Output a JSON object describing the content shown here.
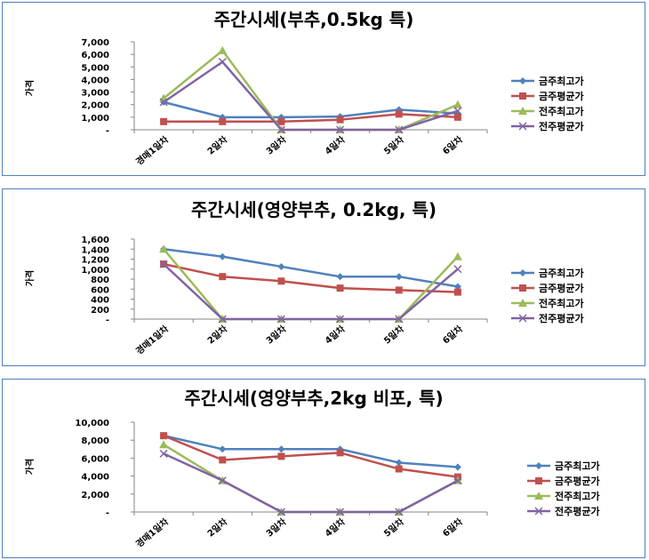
{
  "colors": {
    "series": [
      "#4f81bd",
      "#c0504d",
      "#9bbb59",
      "#8064a2"
    ],
    "border": "#4f81bd"
  },
  "markers": [
    "diamond",
    "square",
    "triangle",
    "x"
  ],
  "chart_data": [
    {
      "type": "line",
      "title": "주간시세(부추,0.5kg 특)",
      "ylabel": "가격",
      "ylim": [
        0,
        7000
      ],
      "yticks": [
        0,
        1000,
        2000,
        3000,
        4000,
        5000,
        6000,
        7000
      ],
      "ytick_labels": [
        "-",
        "1,000",
        "2,000",
        "3,000",
        "4,000",
        "5,000",
        "6,000",
        "7,000"
      ],
      "categories": [
        "경매1일차",
        "2일차",
        "3일차",
        "4일차",
        "5일차",
        "6일차"
      ],
      "legend_position": "right",
      "series": [
        {
          "name": "금주최고가",
          "values": [
            2200,
            1000,
            1000,
            1050,
            1600,
            1300
          ]
        },
        {
          "name": "금주평균가",
          "values": [
            650,
            650,
            650,
            800,
            1250,
            1000
          ]
        },
        {
          "name": "전주최고가",
          "values": [
            2500,
            6300,
            0,
            0,
            0,
            2000
          ]
        },
        {
          "name": "전주평균가",
          "values": [
            2200,
            5400,
            0,
            0,
            0,
            1500
          ]
        }
      ]
    },
    {
      "type": "line",
      "title": "주간시세(영양부추, 0.2kg, 특)",
      "ylabel": "가격",
      "ylim": [
        0,
        1600
      ],
      "yticks": [
        0,
        200,
        400,
        600,
        800,
        1000,
        1200,
        1400,
        1600
      ],
      "ytick_labels": [
        "-",
        "200",
        "400",
        "600",
        "800",
        "1,000",
        "1,200",
        "1,400",
        "1,600"
      ],
      "categories": [
        "경매1일차",
        "2일차",
        "3일차",
        "4일차",
        "5일차",
        "6일차"
      ],
      "legend_position": "right",
      "series": [
        {
          "name": "금주최고가",
          "values": [
            1400,
            1250,
            1050,
            850,
            850,
            650
          ]
        },
        {
          "name": "금주평균가",
          "values": [
            1100,
            850,
            760,
            620,
            580,
            540
          ]
        },
        {
          "name": "전주최고가",
          "values": [
            1400,
            0,
            0,
            0,
            0,
            1250
          ]
        },
        {
          "name": "전주평균가",
          "values": [
            1100,
            0,
            0,
            0,
            0,
            1000
          ]
        }
      ]
    },
    {
      "type": "line",
      "title": "주간시세(영양부추,2kg 비포, 특)",
      "ylabel": "가격",
      "ylim": [
        0,
        10000
      ],
      "yticks": [
        0,
        2000,
        4000,
        6000,
        8000,
        10000
      ],
      "ytick_labels": [
        "-",
        "2,000",
        "4,000",
        "6,000",
        "8,000",
        "10,000"
      ],
      "categories": [
        "경매1일차",
        "2일차",
        "3일차",
        "4일차",
        "5일차",
        "6일차"
      ],
      "legend_position": "right",
      "series": [
        {
          "name": "금주최고가",
          "values": [
            8500,
            7000,
            7000,
            7000,
            5500,
            5000
          ]
        },
        {
          "name": "금주평균가",
          "values": [
            8500,
            5800,
            6200,
            6600,
            4800,
            3900
          ]
        },
        {
          "name": "전주최고가",
          "values": [
            7500,
            3500,
            0,
            0,
            0,
            3500
          ]
        },
        {
          "name": "전주평균가",
          "values": [
            6500,
            3500,
            0,
            0,
            0,
            3500
          ]
        }
      ]
    }
  ]
}
